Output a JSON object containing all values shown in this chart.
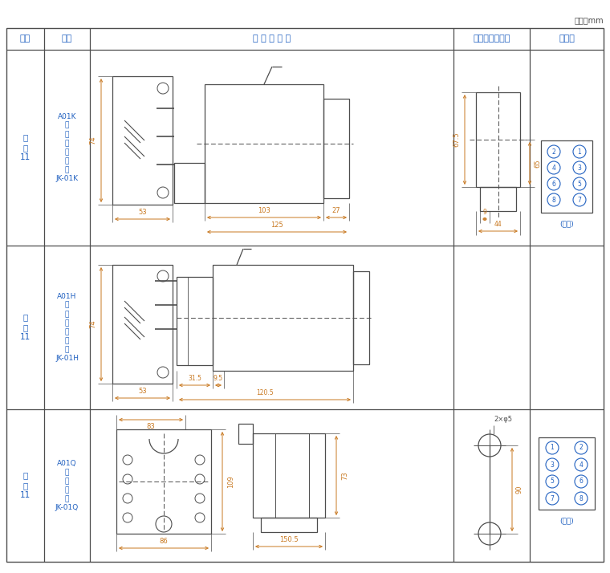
{
  "title": "单位：mm",
  "header_row": [
    "图号",
    "结构",
    "外 形 尺 寸 图",
    "安装开孔尺寸图",
    "端子图"
  ],
  "line_color": "#4d4d4d",
  "text_color": "#4d4d4d",
  "dim_color": "#c87820",
  "blue_color": "#2060c0",
  "header_color": "#2060c0",
  "bg_color": "#ffffff",
  "fig_label_color": "#2060c0"
}
